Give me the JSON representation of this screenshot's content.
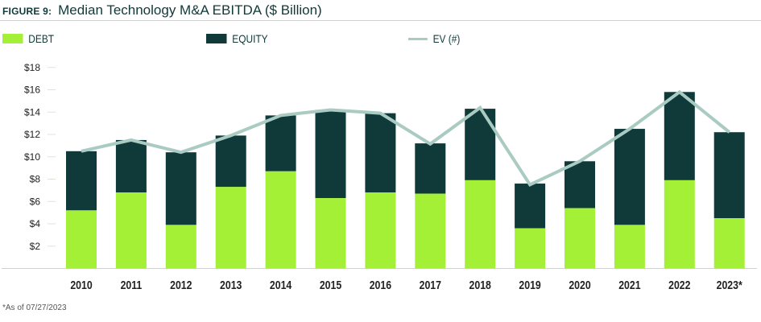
{
  "header": {
    "figure_label": "FIGURE 9:",
    "title": "Median Technology M&A EBITDA ($ Billion)"
  },
  "footnote": "*As of 07/27/2023",
  "colors": {
    "debt": "#a3f037",
    "equity": "#10393a",
    "ev": "#a9cbc2",
    "title": "#10393a"
  },
  "chart_data": {
    "type": "bar",
    "stacked": true,
    "title": "Median Technology M&A EBITDA ($ Billion)",
    "categories": [
      "2010",
      "2011",
      "2012",
      "2013",
      "2014",
      "2015",
      "2016",
      "2017",
      "2018",
      "2019",
      "2020",
      "2021",
      "2022",
      "2023*"
    ],
    "series": [
      {
        "name": "DEBT",
        "type": "bar",
        "values": [
          5.2,
          6.8,
          3.9,
          7.3,
          8.7,
          6.3,
          6.8,
          6.7,
          7.9,
          3.6,
          5.4,
          3.9,
          7.9,
          4.5
        ]
      },
      {
        "name": "EQUITY",
        "type": "bar",
        "values": [
          5.3,
          4.7,
          6.5,
          4.6,
          5.0,
          7.9,
          7.1,
          4.5,
          6.4,
          4.0,
          4.2,
          8.6,
          7.9,
          7.7
        ]
      },
      {
        "name": "EV (#)",
        "type": "line",
        "values": [
          10.5,
          11.5,
          10.4,
          11.9,
          13.7,
          14.2,
          13.9,
          11.15,
          14.4,
          7.5,
          9.6,
          12.5,
          15.8,
          12.2
        ]
      }
    ],
    "yticks": [
      "$2",
      "$4",
      "$6",
      "$8",
      "$10",
      "$12",
      "$14",
      "$16",
      "$18"
    ],
    "ytick_values": [
      2,
      4,
      6,
      8,
      10,
      12,
      14,
      16,
      18
    ],
    "ylim": [
      0,
      18
    ],
    "grid": false,
    "legend": "top"
  }
}
